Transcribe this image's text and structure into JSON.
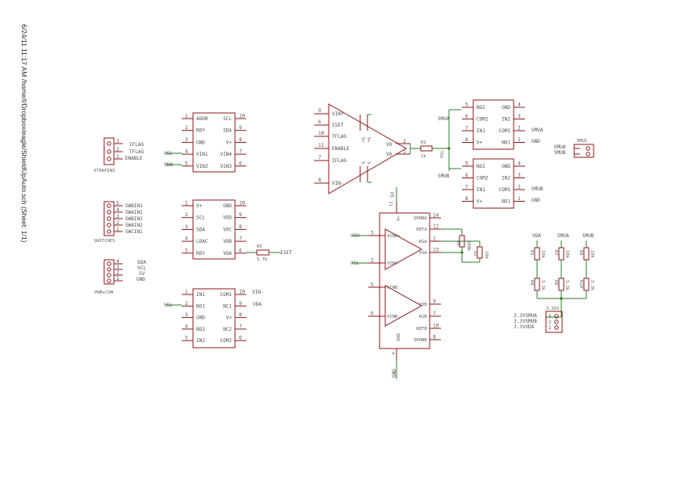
{
  "header": {
    "text": "6/24/11 11:17 AM  /home/t/Dropbox/eagle/ShieldUpAuto.sch (Sheet: 1/1)"
  },
  "xtrapins": {
    "name": "XTRAPINS",
    "labels": [
      "IFLAG",
      "TFLAG",
      "ENABLE"
    ],
    "pins": [
      "3",
      "2",
      "1"
    ]
  },
  "switches": {
    "name": "SWITCHES",
    "labels": [
      "SWBIN1",
      "SWAIN1",
      "SWBIN2",
      "SWAIN2",
      "SWCIN1"
    ],
    "pins": [
      "5",
      "4",
      "3",
      "2",
      "1"
    ]
  },
  "pwrcom": {
    "name": "PWR+COM",
    "labels": [
      "SDA",
      "SCL",
      "5V",
      "GND"
    ],
    "pins": [
      "4",
      "3",
      "2",
      "1"
    ]
  },
  "smu1": {
    "name": "SMU1",
    "labels": [
      "SMUA",
      "SMUB"
    ]
  },
  "v33": {
    "name": "3.3VS",
    "labels": [
      "3.3VSMUA",
      "3.3VSMUB",
      "3.3VVDA"
    ],
    "pins": [
      "3",
      "2",
      "1"
    ]
  },
  "u_adc": {
    "left": [
      [
        "1",
        "ADDR"
      ],
      [
        "2",
        "RDY"
      ],
      [
        "3",
        "GND"
      ],
      [
        "4",
        "VIN1"
      ],
      [
        "5",
        "VIN2"
      ]
    ],
    "right": [
      [
        "10",
        "SCL"
      ],
      [
        "9",
        "SDA"
      ],
      [
        "8",
        "V+"
      ],
      [
        "7",
        "VIN4"
      ],
      [
        "6",
        "VIN3"
      ]
    ],
    "nets": [
      "VSL",
      "VDA"
    ]
  },
  "u_dac": {
    "left": [
      [
        "1",
        "V+"
      ],
      [
        "2",
        "SCL"
      ],
      [
        "3",
        "SDA"
      ],
      [
        "4",
        "LDAC"
      ],
      [
        "5",
        "RDY"
      ]
    ],
    "right": [
      [
        "10",
        "GND"
      ],
      [
        "9",
        "VOD"
      ],
      [
        "8",
        "VOC"
      ],
      [
        "7",
        "VOB"
      ],
      [
        "6",
        "VOA"
      ]
    ],
    "resistor": "R5",
    "resistor_value": "5.7k",
    "net": "ISET"
  },
  "u_mux": {
    "left": [
      [
        "1",
        "IN1"
      ],
      [
        "2",
        "NO1"
      ],
      [
        "3",
        "GND"
      ],
      [
        "4",
        "NO2"
      ],
      [
        "5",
        "IN2"
      ]
    ],
    "right": [
      [
        "10",
        "COM1"
      ],
      [
        "9",
        "NC1"
      ],
      [
        "8",
        "V+"
      ],
      [
        "7",
        "NC2"
      ],
      [
        "6",
        "COM2"
      ]
    ],
    "nets": [
      "VSL",
      "VIN-",
      "VDA"
    ]
  },
  "opamp": {
    "left": [
      [
        "9",
        "VIN+"
      ],
      [
        "6",
        "ISET"
      ],
      [
        "10",
        "TFLAG"
      ],
      [
        "11",
        "ENABLE"
      ],
      [
        "7",
        "IFLAG"
      ],
      [
        "8",
        "VIN-"
      ]
    ],
    "out": [
      [
        "2",
        "VO"
      ],
      [
        "1",
        "VO"
      ]
    ],
    "top_pins": [
      "V+",
      "V+"
    ],
    "bot_pins": [
      "V-",
      "V-"
    ],
    "r1": "R1",
    "r1_value": "1k",
    "vsl": "VSL"
  },
  "sw_a": {
    "left": [
      [
        "5",
        "NO2"
      ],
      [
        "6",
        "COM2"
      ],
      [
        "7",
        "IN1"
      ],
      [
        "8",
        "V+"
      ]
    ],
    "right": [
      [
        "4",
        "GND"
      ],
      [
        "3",
        "IN2"
      ],
      [
        "2",
        "COM1"
      ],
      [
        "1",
        "NO1"
      ]
    ],
    "net_left": "SMUA",
    "net_right": [
      "SMUA",
      "GND"
    ]
  },
  "sw_b": {
    "left": [
      [
        "5",
        "NO2"
      ],
      [
        "6",
        "COM2"
      ],
      [
        "7",
        "IN1"
      ],
      [
        "8",
        "V+"
      ]
    ],
    "right": [
      [
        "4",
        "GND"
      ],
      [
        "3",
        "IN2"
      ],
      [
        "2",
        "COM1"
      ],
      [
        "1",
        "NO1"
      ]
    ],
    "net_left": "SMUB",
    "net_right": [
      "SMUB",
      "GND"
    ]
  },
  "dual_amp": {
    "top_net": "5V",
    "top_pin": [
      "11",
      "V+"
    ],
    "left": [
      [
        "3",
        "VINA+"
      ],
      [
        "2",
        "VINA-"
      ],
      [
        "5",
        "VINB"
      ],
      [
        "6",
        "VINB-"
      ]
    ],
    "left_nets": [
      "VSH",
      "VSL"
    ],
    "right": [
      [
        "14",
        "SHDNA"
      ],
      [
        "12",
        "REFA"
      ],
      [
        "1",
        "RGA"
      ],
      [
        "13",
        "VOA"
      ],
      [
        "9",
        "VOB"
      ],
      [
        "7",
        "RGB"
      ],
      [
        "10",
        "REFB"
      ],
      [
        "8",
        "SHDNB"
      ]
    ],
    "bot_pin": [
      "4",
      "GND"
    ],
    "bot_net": "GND",
    "r3": "R3",
    "r2": "R2",
    "r3_value": "100k",
    "r2_value": "10k"
  },
  "divider": {
    "nets": [
      "VDA",
      "SMUA",
      "SMUB"
    ],
    "top_res": [
      [
        "R3",
        "10k"
      ],
      [
        "R7",
        "10k"
      ],
      [
        "R9",
        "10k"
      ]
    ],
    "bot_res": [
      [
        "R4",
        "3.3k"
      ],
      [
        "R8",
        "3.3k"
      ],
      [
        "R10",
        "3.3k"
      ]
    ]
  },
  "colors": {
    "part": "#8b1a1a",
    "net": "#2e7d2e",
    "text": "#5a5a5a"
  }
}
